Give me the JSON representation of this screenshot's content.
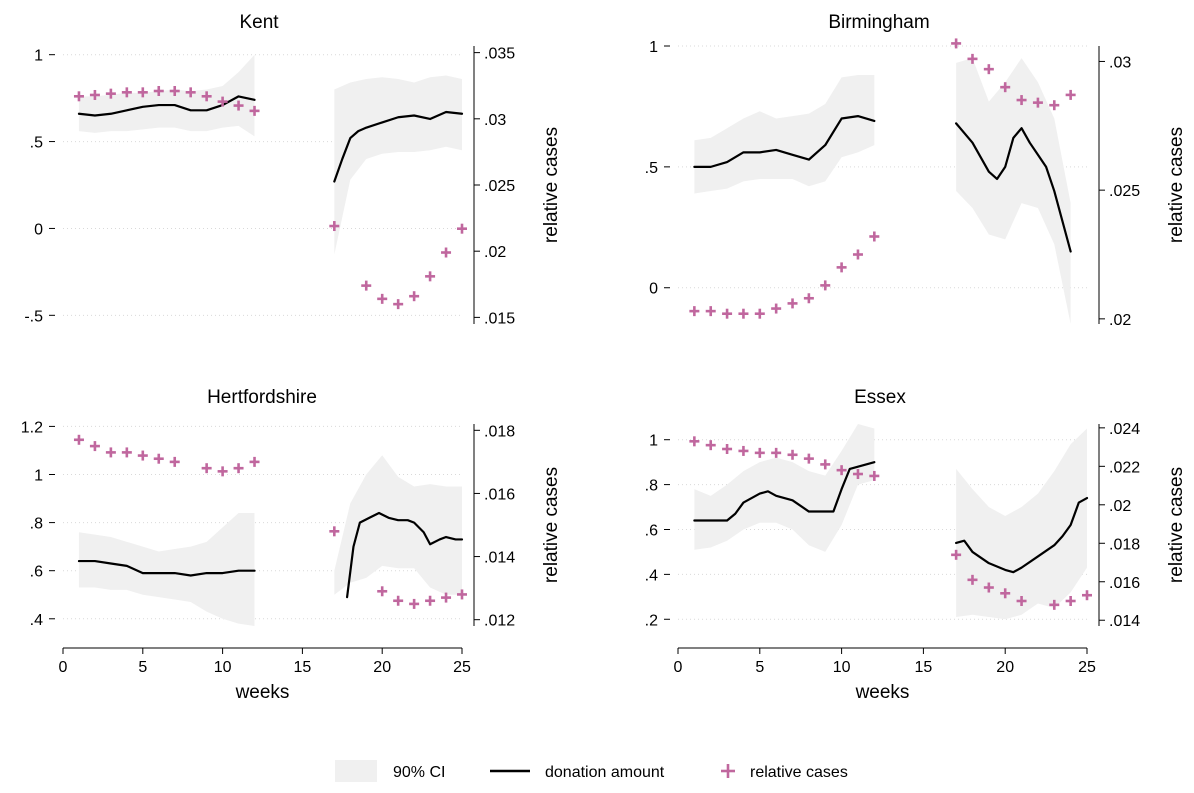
{
  "legend": {
    "ci_label": "90% CI",
    "line_label": "donation amount",
    "marker_label": "relative cases"
  },
  "colors": {
    "ci_fill": "#f0f0f0",
    "line": "#000000",
    "marker": "#c0679e",
    "grid": "#d9d9d9"
  },
  "chart_data": [
    {
      "type": "line",
      "title": "Kent",
      "xlabel": "",
      "ylabel_left": "",
      "ylabel_right": "relative cases",
      "x_ticks": [
        0,
        5,
        10,
        15,
        20,
        25
      ],
      "x_tick_labels": [],
      "xlim": [
        0,
        25
      ],
      "y_ticks": [
        1,
        0.5,
        0,
        -0.5
      ],
      "y_tick_labels": [
        "1",
        ".5",
        "0",
        "-.5"
      ],
      "ylim": [
        -0.55,
        1.05
      ],
      "y2_ticks": [
        0.035,
        0.03,
        0.025,
        0.02,
        0.015
      ],
      "y2_tick_labels": [
        ".035",
        ".03",
        ".025",
        ".02",
        ".015"
      ],
      "y2lim": [
        0.0145,
        0.0355
      ],
      "ci_segments": [
        {
          "x": [
            1,
            2,
            3,
            4,
            5,
            6,
            7,
            8,
            9,
            10,
            11,
            12
          ],
          "upper": [
            0.76,
            0.76,
            0.77,
            0.78,
            0.78,
            0.79,
            0.8,
            0.79,
            0.8,
            0.82,
            0.9,
            1.0
          ],
          "lower": [
            0.56,
            0.55,
            0.56,
            0.56,
            0.57,
            0.58,
            0.58,
            0.56,
            0.56,
            0.58,
            0.59,
            0.53
          ]
        },
        {
          "x": [
            17,
            18,
            19,
            20,
            21,
            22,
            23,
            24,
            25
          ],
          "upper": [
            0.8,
            0.84,
            0.86,
            0.87,
            0.86,
            0.84,
            0.87,
            0.88,
            0.86
          ],
          "lower": [
            -0.15,
            0.28,
            0.4,
            0.43,
            0.44,
            0.44,
            0.45,
            0.47,
            0.45
          ]
        }
      ],
      "series": [
        {
          "name": "donation amount",
          "segments": [
            {
              "x": [
                1,
                2,
                3,
                4,
                5,
                6,
                7,
                8,
                9,
                10,
                11,
                12
              ],
              "y": [
                0.66,
                0.65,
                0.66,
                0.68,
                0.7,
                0.71,
                0.71,
                0.68,
                0.68,
                0.71,
                0.76,
                0.74
              ]
            },
            {
              "x": [
                17,
                17.5,
                18,
                18.5,
                19,
                20,
                21,
                22,
                23,
                24,
                25
              ],
              "y": [
                0.27,
                0.4,
                0.52,
                0.56,
                0.58,
                0.61,
                0.64,
                0.65,
                0.63,
                0.67,
                0.66
              ]
            }
          ]
        },
        {
          "name": "relative cases",
          "axis": "right",
          "x": [
            1,
            2,
            3,
            4,
            5,
            6,
            7,
            8,
            9,
            10,
            11,
            12,
            17,
            19,
            20,
            21,
            22,
            23,
            24,
            25
          ],
          "y": [
            0.0317,
            0.0318,
            0.0319,
            0.032,
            0.032,
            0.0321,
            0.0321,
            0.032,
            0.0317,
            0.0313,
            0.031,
            0.0306,
            0.0219,
            0.0174,
            0.0164,
            0.016,
            0.0166,
            0.0181,
            0.0199,
            0.0217
          ]
        }
      ]
    },
    {
      "type": "line",
      "title": "Birmingham",
      "xlabel": "",
      "ylabel_left": "",
      "ylabel_right": "relative cases",
      "x_ticks": [
        0,
        5,
        10,
        15,
        20,
        25
      ],
      "x_tick_labels": [],
      "xlim": [
        0,
        25
      ],
      "y_ticks": [
        1,
        0.5,
        0
      ],
      "y_tick_labels": [
        "1",
        ".5",
        "0"
      ],
      "ylim": [
        -0.15,
        1.0
      ],
      "y2_ticks": [
        0.03,
        0.025,
        0.02
      ],
      "y2_tick_labels": [
        ".03",
        ".025",
        ".02"
      ],
      "y2lim": [
        0.0198,
        0.0306
      ],
      "ci_segments": [
        {
          "x": [
            1,
            2,
            3,
            4,
            5,
            6,
            7,
            8,
            9,
            10,
            11,
            12
          ],
          "upper": [
            0.61,
            0.62,
            0.66,
            0.7,
            0.73,
            0.7,
            0.71,
            0.72,
            0.76,
            0.87,
            0.88,
            0.88
          ],
          "lower": [
            0.39,
            0.4,
            0.41,
            0.44,
            0.45,
            0.45,
            0.45,
            0.42,
            0.44,
            0.54,
            0.56,
            0.59
          ]
        },
        {
          "x": [
            17,
            18,
            19,
            20,
            21,
            22,
            23,
            24
          ],
          "upper": [
            0.93,
            0.95,
            0.77,
            0.85,
            0.95,
            0.85,
            0.7,
            0.35
          ],
          "lower": [
            0.4,
            0.33,
            0.22,
            0.2,
            0.35,
            0.33,
            0.18,
            -0.15
          ]
        }
      ],
      "series": [
        {
          "name": "donation amount",
          "segments": [
            {
              "x": [
                1,
                2,
                3,
                4,
                5,
                6,
                7,
                8,
                9,
                10,
                11,
                12
              ],
              "y": [
                0.5,
                0.5,
                0.52,
                0.56,
                0.56,
                0.57,
                0.55,
                0.53,
                0.59,
                0.7,
                0.71,
                0.69
              ]
            },
            {
              "x": [
                17,
                18,
                19,
                19.5,
                20,
                20.5,
                21,
                21.5,
                22,
                22.5,
                23,
                24
              ],
              "y": [
                0.68,
                0.6,
                0.48,
                0.45,
                0.5,
                0.62,
                0.66,
                0.6,
                0.55,
                0.5,
                0.4,
                0.15
              ]
            }
          ]
        },
        {
          "name": "relative cases",
          "axis": "right",
          "x": [
            1,
            2,
            3,
            4,
            5,
            6,
            7,
            8,
            9,
            10,
            11,
            12,
            17,
            18,
            19,
            20,
            21,
            22,
            23,
            24
          ],
          "y": [
            0.0203,
            0.0203,
            0.0202,
            0.0202,
            0.0202,
            0.0204,
            0.0206,
            0.0208,
            0.0213,
            0.022,
            0.0225,
            0.0232,
            0.0307,
            0.0301,
            0.0297,
            0.029,
            0.0285,
            0.0284,
            0.0283,
            0.0287
          ]
        }
      ]
    },
    {
      "type": "line",
      "title": "Hertfordshire",
      "xlabel": "weeks",
      "ylabel_left": "",
      "ylabel_right": "relative cases",
      "x_ticks": [
        0,
        5,
        10,
        15,
        20,
        25
      ],
      "x_tick_labels": [
        "0",
        "5",
        "10",
        "15",
        "20",
        "25"
      ],
      "xlim": [
        0,
        25
      ],
      "y_ticks": [
        1.2,
        1.0,
        0.8,
        0.6,
        0.4
      ],
      "y_tick_labels": [
        "1.2",
        "1",
        ".8",
        ".6",
        ".4"
      ],
      "ylim": [
        0.37,
        1.21
      ],
      "y2_ticks": [
        0.018,
        0.016,
        0.014,
        0.012
      ],
      "y2_tick_labels": [
        ".018",
        ".016",
        ".014",
        ".012"
      ],
      "y2lim": [
        0.0118,
        0.0182
      ],
      "ci_segments": [
        {
          "x": [
            1,
            2,
            3,
            4,
            5,
            6,
            7,
            8,
            9,
            10,
            11,
            12
          ],
          "upper": [
            0.76,
            0.75,
            0.74,
            0.72,
            0.7,
            0.68,
            0.69,
            0.7,
            0.72,
            0.78,
            0.84,
            0.84
          ],
          "lower": [
            0.53,
            0.53,
            0.52,
            0.52,
            0.5,
            0.49,
            0.48,
            0.47,
            0.43,
            0.4,
            0.38,
            0.37
          ]
        },
        {
          "x": [
            17,
            18,
            19,
            20,
            21,
            22,
            23,
            24,
            25
          ],
          "upper": [
            0.6,
            0.88,
            1.0,
            1.08,
            0.99,
            0.95,
            0.96,
            0.95,
            0.95
          ],
          "lower": [
            0.5,
            0.55,
            0.57,
            0.62,
            0.61,
            0.61,
            0.53,
            0.5,
            0.5
          ]
        }
      ],
      "series": [
        {
          "name": "donation amount",
          "segments": [
            {
              "x": [
                1,
                2,
                3,
                4,
                5,
                6,
                7,
                8,
                9,
                10,
                11,
                12
              ],
              "y": [
                0.64,
                0.64,
                0.63,
                0.62,
                0.59,
                0.59,
                0.59,
                0.58,
                0.59,
                0.59,
                0.6,
                0.6
              ]
            },
            {
              "x": [
                17.8,
                18.2,
                18.6,
                19.2,
                19.8,
                20.4,
                21,
                21.6,
                22,
                22.6,
                23,
                23.6,
                24,
                24.6,
                25
              ],
              "y": [
                0.49,
                0.7,
                0.8,
                0.82,
                0.84,
                0.82,
                0.81,
                0.81,
                0.8,
                0.76,
                0.71,
                0.73,
                0.74,
                0.73,
                0.73
              ]
            }
          ]
        },
        {
          "name": "relative cases",
          "axis": "right",
          "x": [
            1,
            2,
            3,
            4,
            5,
            6,
            7,
            9,
            10,
            11,
            12,
            17,
            20,
            21,
            22,
            23,
            24,
            25
          ],
          "y": [
            0.0177,
            0.0175,
            0.0173,
            0.0173,
            0.0172,
            0.0171,
            0.017,
            0.0168,
            0.0167,
            0.0168,
            0.017,
            0.0148,
            0.0129,
            0.0126,
            0.0125,
            0.0126,
            0.0127,
            0.0128
          ]
        }
      ]
    },
    {
      "type": "line",
      "title": "Essex",
      "xlabel": "weeks",
      "ylabel_left": "",
      "ylabel_right": "relative cases",
      "x_ticks": [
        0,
        5,
        10,
        15,
        20,
        25
      ],
      "x_tick_labels": [
        "0",
        "5",
        "10",
        "15",
        "20",
        "25"
      ],
      "xlim": [
        0,
        25
      ],
      "y_ticks": [
        1.0,
        0.8,
        0.6,
        0.4,
        0.2
      ],
      "y_tick_labels": [
        "1",
        ".8",
        ".6",
        ".4",
        ".2"
      ],
      "ylim": [
        0.17,
        1.07
      ],
      "y2_ticks": [
        0.024,
        0.022,
        0.02,
        0.018,
        0.016,
        0.014
      ],
      "y2_tick_labels": [
        ".024",
        ".022",
        ".02",
        ".018",
        ".016",
        ".014"
      ],
      "y2lim": [
        0.0137,
        0.0242
      ],
      "ci_segments": [
        {
          "x": [
            1,
            2,
            3,
            4,
            5,
            6,
            7,
            8,
            9,
            10,
            11,
            12
          ],
          "upper": [
            0.78,
            0.75,
            0.8,
            0.86,
            0.9,
            0.92,
            0.9,
            0.86,
            0.84,
            0.95,
            1.07,
            1.05
          ],
          "lower": [
            0.51,
            0.52,
            0.55,
            0.6,
            0.63,
            0.63,
            0.6,
            0.53,
            0.5,
            0.62,
            0.8,
            0.82
          ]
        },
        {
          "x": [
            17,
            18,
            19,
            20,
            21,
            22,
            23,
            24,
            25
          ],
          "upper": [
            0.87,
            0.78,
            0.7,
            0.66,
            0.7,
            0.76,
            0.86,
            0.98,
            1.05
          ],
          "lower": [
            0.21,
            0.22,
            0.21,
            0.2,
            0.22,
            0.27,
            0.25,
            0.32,
            0.43
          ]
        }
      ],
      "series": [
        {
          "name": "donation amount",
          "segments": [
            {
              "x": [
                1,
                2,
                3,
                3.5,
                4,
                5,
                5.5,
                6,
                7,
                8,
                9,
                9.5,
                10,
                10.5,
                11,
                12
              ],
              "y": [
                0.64,
                0.64,
                0.64,
                0.67,
                0.72,
                0.76,
                0.77,
                0.75,
                0.73,
                0.68,
                0.68,
                0.68,
                0.78,
                0.87,
                0.88,
                0.9
              ]
            },
            {
              "x": [
                17,
                17.5,
                18,
                19,
                20,
                20.5,
                21,
                22,
                23,
                23.5,
                24,
                24.5,
                25
              ],
              "y": [
                0.54,
                0.55,
                0.5,
                0.45,
                0.42,
                0.41,
                0.43,
                0.48,
                0.53,
                0.57,
                0.62,
                0.72,
                0.74
              ]
            }
          ]
        },
        {
          "name": "relative cases",
          "axis": "right",
          "x": [
            1,
            2,
            3,
            4,
            5,
            6,
            7,
            8,
            9,
            10,
            11,
            12,
            17,
            18,
            19,
            20,
            21,
            23,
            24,
            25
          ],
          "y": [
            0.0233,
            0.0231,
            0.0229,
            0.0228,
            0.0227,
            0.0227,
            0.0226,
            0.0224,
            0.0221,
            0.0218,
            0.0216,
            0.0215,
            0.0174,
            0.0161,
            0.0157,
            0.0154,
            0.015,
            0.0148,
            0.015,
            0.0153
          ]
        }
      ]
    }
  ]
}
